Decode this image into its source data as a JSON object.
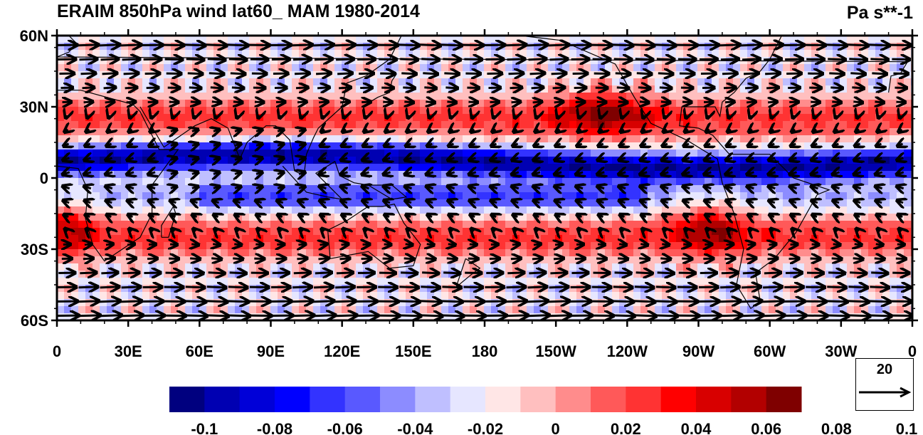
{
  "title": "ERAIM 850hPa wind lat60_ MAM 1980-2014",
  "units": "Pa s**-1",
  "lat_labels": [
    "60N",
    "30N",
    "0",
    "30S",
    "60S"
  ],
  "lon_labels": [
    "0",
    "30E",
    "60E",
    "90E",
    "120E",
    "150E",
    "180",
    "150W",
    "120W",
    "90W",
    "60W",
    "30W",
    "0"
  ],
  "reference_vector": {
    "label": "20",
    "magnitude": 20
  },
  "colorbar": {
    "colors": [
      "#00007f",
      "#0000b2",
      "#0000d8",
      "#0000ff",
      "#3333ff",
      "#5959ff",
      "#8c8cff",
      "#bfbfff",
      "#e6e6ff",
      "#ffe6e6",
      "#ffbfbf",
      "#ff8c8c",
      "#ff5959",
      "#ff3333",
      "#ff0000",
      "#d80000",
      "#b20000",
      "#7f0000"
    ],
    "tick_labels": [
      "-0.1",
      "-0.08",
      "-0.06",
      "-0.04",
      "-0.02",
      "0",
      "0.02",
      "0.04",
      "0.06",
      "0.08",
      "0.1"
    ]
  },
  "chart_data": {
    "type": "heatmap",
    "variable": "Pa s**-1",
    "lat_range": [
      -60,
      60
    ],
    "lon_range": [
      0,
      360
    ],
    "color_range": [
      -0.1,
      0.1
    ]
  }
}
